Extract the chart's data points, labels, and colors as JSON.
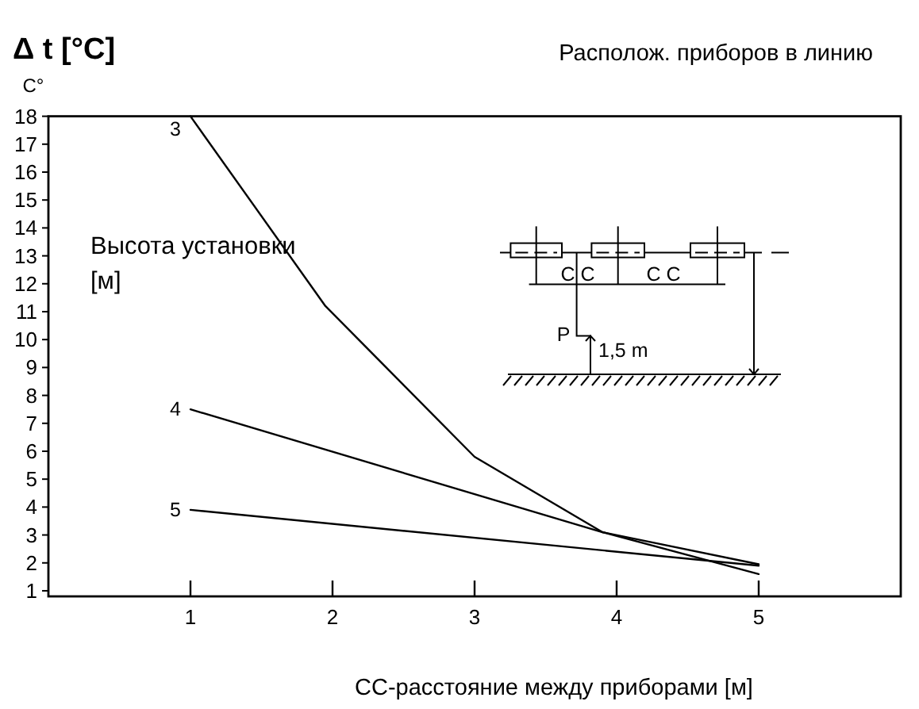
{
  "chart_data": {
    "type": "line",
    "title": "Δ t [°C]",
    "subtitle": "Располож. приборов в линию",
    "xlabel": "CC-расстояние между приборами [м]",
    "ylabel": "C°",
    "legend_title": "Высота установки [м]",
    "annotations": [
      "C C",
      "C C",
      "P",
      "1,5 m"
    ],
    "xlim": [
      0,
      6
    ],
    "xticks": [
      1,
      2,
      3,
      4,
      5
    ],
    "ylim": [
      0.8,
      18
    ],
    "yticks": [
      1,
      2,
      3,
      4,
      5,
      6,
      7,
      8,
      9,
      10,
      11,
      12,
      13,
      14,
      15,
      16,
      17,
      18
    ],
    "series": [
      {
        "name": "3",
        "color": "#000000",
        "x": [
          1,
          1.95,
          3,
          3.9,
          5
        ],
        "values": [
          18,
          11.2,
          5.8,
          3.1,
          1.6
        ]
      },
      {
        "name": "4",
        "color": "#000000",
        "x": [
          1,
          3.9,
          5
        ],
        "values": [
          7.5,
          3.1,
          1.95
        ]
      },
      {
        "name": "5",
        "color": "#000000",
        "x": [
          1,
          5
        ],
        "values": [
          3.9,
          1.9
        ]
      }
    ]
  }
}
